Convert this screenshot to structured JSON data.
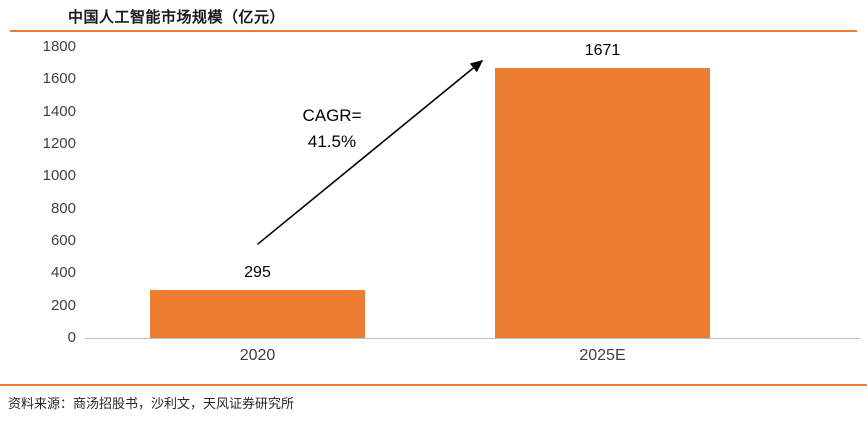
{
  "title": "中国人工智能市场规模（亿元）",
  "source": "资料来源：商汤招股书，沙利文，天风证券研究所",
  "annotation": {
    "line1": "CAGR=",
    "line2": "41.5%"
  },
  "colors": {
    "bar": "#ED7D31",
    "rule": "#ED7D31",
    "axis_line": "#BFBFBF",
    "text": "#000000"
  },
  "chart_data": {
    "type": "bar",
    "title": "中国人工智能市场规模（亿元）",
    "categories": [
      "2020",
      "2025E"
    ],
    "values": [
      295,
      1671
    ],
    "xlabel": "",
    "ylabel": "",
    "ylim": [
      0,
      1800
    ],
    "ytick_interval": 200,
    "yticks": [
      0,
      200,
      400,
      600,
      800,
      1000,
      1200,
      1400,
      1600,
      1800
    ],
    "grid": false,
    "legend": "none",
    "annotations": [
      "CAGR=",
      "41.5%"
    ]
  }
}
